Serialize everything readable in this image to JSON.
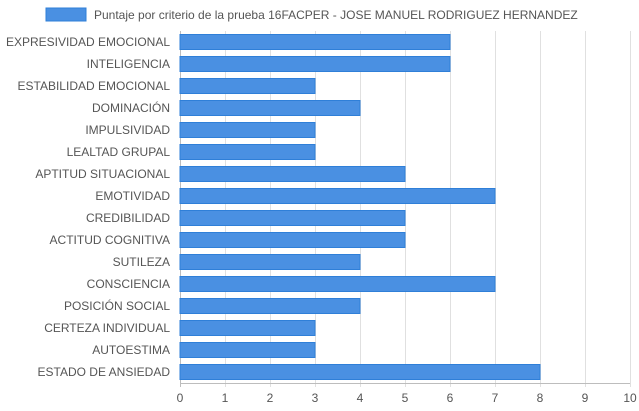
{
  "chart_data": {
    "type": "bar",
    "orientation": "horizontal",
    "legend": {
      "position": "top",
      "label": "Puntaje por criterio de la prueba 16FACPER - JOSE MANUEL RODRIGUEZ HERNANDEZ"
    },
    "categories": [
      "EXPRESIVIDAD EMOCIONAL",
      "INTELIGENCIA",
      "ESTABILIDAD EMOCIONAL",
      "DOMINACIÓN",
      "IMPULSIVIDAD",
      "LEALTAD GRUPAL",
      "APTITUD SITUACIONAL",
      "EMOTIVIDAD",
      "CREDIBILIDAD",
      "ACTITUD COGNITIVA",
      "SUTILEZA",
      "CONSCIENCIA",
      "POSICIÓN SOCIAL",
      "CERTEZA INDIVIDUAL",
      "AUTOESTIMA",
      "ESTADO DE ANSIEDAD"
    ],
    "series": [
      {
        "name": "Puntaje por criterio de la prueba 16FACPER - JOSE MANUEL RODRIGUEZ HERNANDEZ",
        "values": [
          6,
          6,
          3,
          4,
          3,
          3,
          5,
          7,
          5,
          5,
          4,
          7,
          4,
          3,
          3,
          8
        ]
      }
    ],
    "xlim": [
      0,
      10
    ],
    "xticks": [
      "0",
      "1",
      "2",
      "3",
      "4",
      "5",
      "6",
      "7",
      "8",
      "9",
      "10"
    ],
    "grid": true,
    "colors": {
      "bar_fill": "#4a90e2",
      "bar_stroke": "#2f7fd8",
      "grid": "#e0e0e0",
      "axis": "#bdbdbd",
      "text": "#555555"
    }
  }
}
